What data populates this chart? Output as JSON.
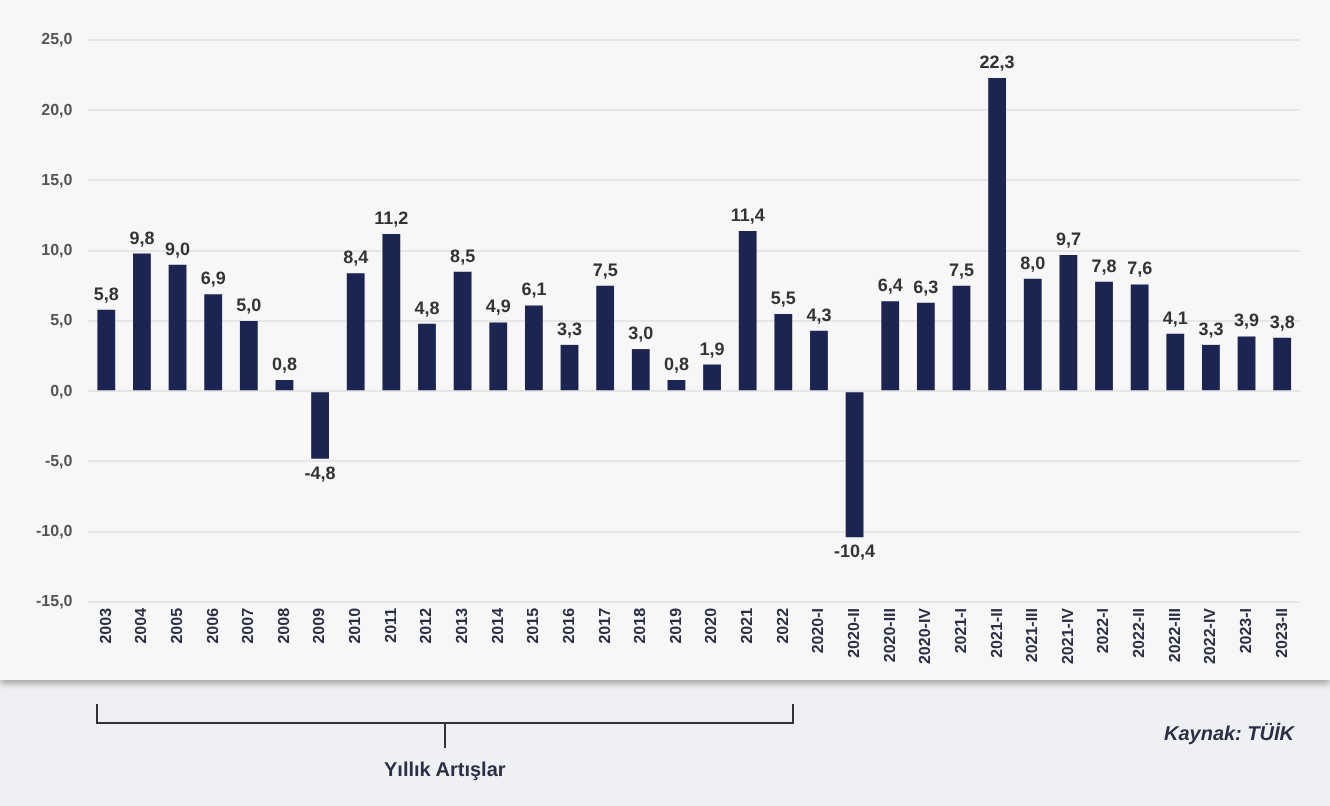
{
  "chart_data": {
    "type": "bar",
    "categories": [
      "2003",
      "2004",
      "2005",
      "2006",
      "2007",
      "2008",
      "2009",
      "2010",
      "2011",
      "2012",
      "2013",
      "2014",
      "2015",
      "2016",
      "2017",
      "2018",
      "2019",
      "2020",
      "2021",
      "2022",
      "2020-I",
      "2020-II",
      "2020-III",
      "2020-IV",
      "2021-I",
      "2021-II",
      "2021-III",
      "2021-IV",
      "2022-I",
      "2022-II",
      "2022-III",
      "2022-IV",
      "2023-I",
      "2023-II"
    ],
    "values": [
      5.8,
      9.8,
      9.0,
      6.9,
      5.0,
      0.8,
      -4.8,
      8.4,
      11.2,
      4.8,
      8.5,
      4.9,
      6.1,
      3.3,
      7.5,
      3.0,
      0.8,
      1.9,
      11.4,
      5.5,
      4.3,
      -10.4,
      6.4,
      6.3,
      7.5,
      22.3,
      8.0,
      9.7,
      7.8,
      7.6,
      4.1,
      3.3,
      3.9,
      3.8
    ],
    "value_labels": [
      "5,8",
      "9,8",
      "9,0",
      "6,9",
      "5,0",
      "0,8",
      "-4,8",
      "8,4",
      "11,2",
      "4,8",
      "8,5",
      "4,9",
      "6,1",
      "3,3",
      "7,5",
      "3,0",
      "0,8",
      "1,9",
      "11,4",
      "5,5",
      "4,3",
      "-10,4",
      "6,4",
      "6,3",
      "7,5",
      "22,3",
      "8,0",
      "9,7",
      "7,8",
      "7,6",
      "4,1",
      "3,3",
      "3,9",
      "3,8"
    ],
    "color": "#1c2552",
    "ylim": [
      -15,
      25
    ],
    "yticks": [
      {
        "value": -15,
        "label": "-15,0"
      },
      {
        "value": -10,
        "label": "-10,0"
      },
      {
        "value": -5,
        "label": "-5,0"
      },
      {
        "value": 0,
        "label": "0,0"
      },
      {
        "value": 5,
        "label": "5,0"
      },
      {
        "value": 10,
        "label": "10,0"
      },
      {
        "value": 15,
        "label": "15,0"
      },
      {
        "value": 20,
        "label": "20,0"
      },
      {
        "value": 25,
        "label": "25,0"
      }
    ],
    "grid": "y",
    "legend": false,
    "annotations": [
      "Yıllık Artışlar",
      "Kaynak: TÜİK"
    ]
  }
}
